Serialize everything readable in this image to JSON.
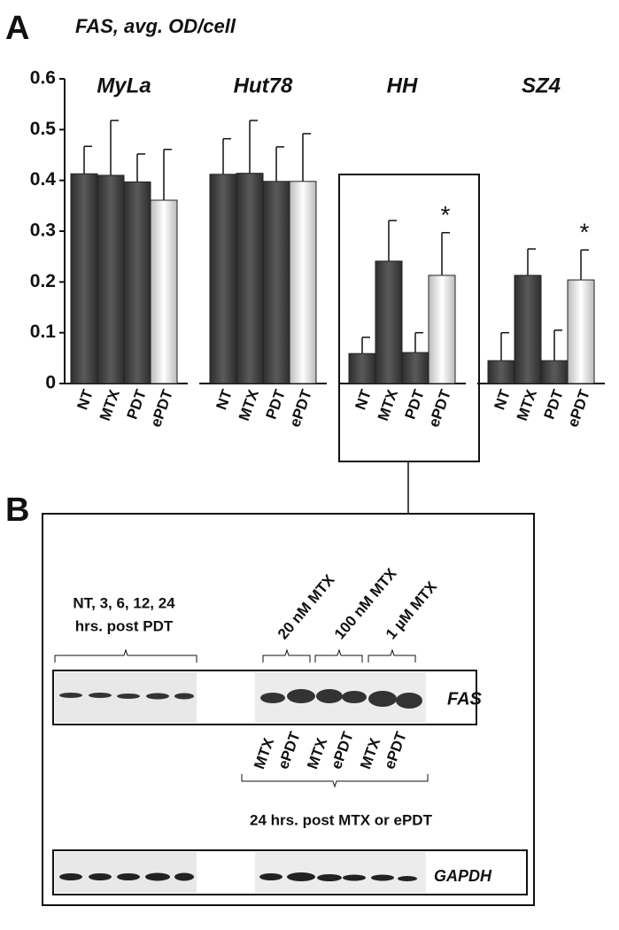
{
  "chart_data": {
    "type": "bar",
    "panel_label": "A",
    "title": "FAS, avg. OD/cell",
    "categories": [
      "NT",
      "MTX",
      "PDT",
      "ePDT"
    ],
    "colors": [
      "#4a4a4a",
      "#4a4a4a",
      "#4a4a4a",
      "#f4f4f4"
    ],
    "series": [
      {
        "name": "MyLa",
        "values": [
          0.413,
          0.41,
          0.397,
          0.361
        ],
        "errors": [
          0.054,
          0.108,
          0.055,
          0.1
        ]
      },
      {
        "name": "Hut78",
        "values": [
          0.412,
          0.414,
          0.398,
          0.398
        ],
        "errors": [
          0.07,
          0.104,
          0.068,
          0.094
        ]
      },
      {
        "name": "HH",
        "values": [
          0.059,
          0.241,
          0.061,
          0.213
        ],
        "errors": [
          0.032,
          0.08,
          0.039,
          0.084
        ]
      },
      {
        "name": "SZ4",
        "values": [
          0.045,
          0.213,
          0.045,
          0.204
        ],
        "errors": [
          0.055,
          0.052,
          0.06,
          0.059
        ]
      }
    ],
    "annotations": [
      {
        "text": "*",
        "series": 2,
        "category": 3
      },
      {
        "text": "*",
        "series": 3,
        "category": 3
      }
    ],
    "ylim": [
      0,
      0.6
    ],
    "yticks": [
      0,
      0.1,
      0.2,
      0.3,
      0.4,
      0.5,
      0.6
    ]
  },
  "blot": {
    "panel_label": "B",
    "left_caption": [
      "NT, 3, 6, 12, 24",
      "hrs. post PDT"
    ],
    "doses": [
      "20 nM MTX",
      "100 nM MTX",
      "1 µM MTX"
    ],
    "lanes": [
      "MTX",
      "ePDT",
      "MTX",
      "ePDT",
      "MTX",
      "ePDT"
    ],
    "bottom_caption": "24 hrs. post MTX or ePDT",
    "proteins": [
      "FAS",
      "GAPDH"
    ]
  }
}
